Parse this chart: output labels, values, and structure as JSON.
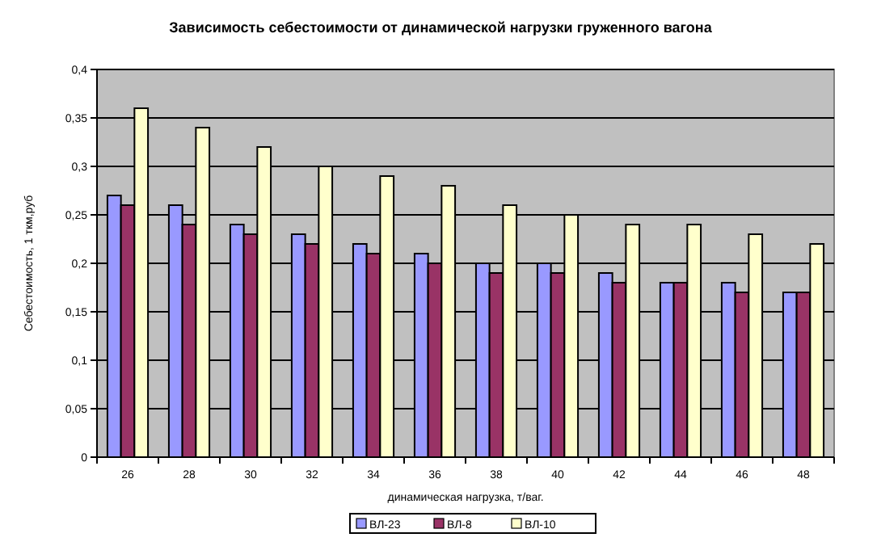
{
  "chart_data": {
    "type": "bar",
    "title": "Зависимость себестоимости от динамической нагрузки груженного вагона",
    "xlabel": "динамическая нагрузка, т/ваг.",
    "ylabel": "Себестоимость, 1 ткм,руб",
    "categories": [
      "26",
      "28",
      "30",
      "32",
      "34",
      "36",
      "38",
      "40",
      "42",
      "44",
      "46",
      "48"
    ],
    "series": [
      {
        "name": "ВЛ-23",
        "color": "#9999ff",
        "values": [
          0.27,
          0.26,
          0.24,
          0.23,
          0.22,
          0.21,
          0.2,
          0.2,
          0.19,
          0.18,
          0.18,
          0.17
        ]
      },
      {
        "name": "ВЛ-8",
        "color": "#993366",
        "values": [
          0.26,
          0.24,
          0.23,
          0.22,
          0.21,
          0.2,
          0.19,
          0.19,
          0.18,
          0.18,
          0.17,
          0.17
        ]
      },
      {
        "name": "ВЛ-10",
        "color": "#ffffcc",
        "values": [
          0.36,
          0.34,
          0.32,
          0.3,
          0.29,
          0.28,
          0.26,
          0.25,
          0.24,
          0.24,
          0.23,
          0.22
        ]
      }
    ],
    "ylim": [
      0,
      0.4
    ],
    "yticks": [
      0,
      {
        "value": 0.05,
        "label": "0,05"
      },
      {
        "value": 0.1,
        "label": "0,1"
      },
      {
        "value": 0.15,
        "label": "0,15"
      },
      {
        "value": 0.2,
        "label": "0,2"
      },
      {
        "value": 0.25,
        "label": "0,25"
      },
      {
        "value": 0.3,
        "label": "0,3"
      },
      {
        "value": 0.35,
        "label": "0,35"
      },
      {
        "value": 0.4,
        "label": "0,4"
      }
    ],
    "grid": "y",
    "legend": "bottom"
  }
}
